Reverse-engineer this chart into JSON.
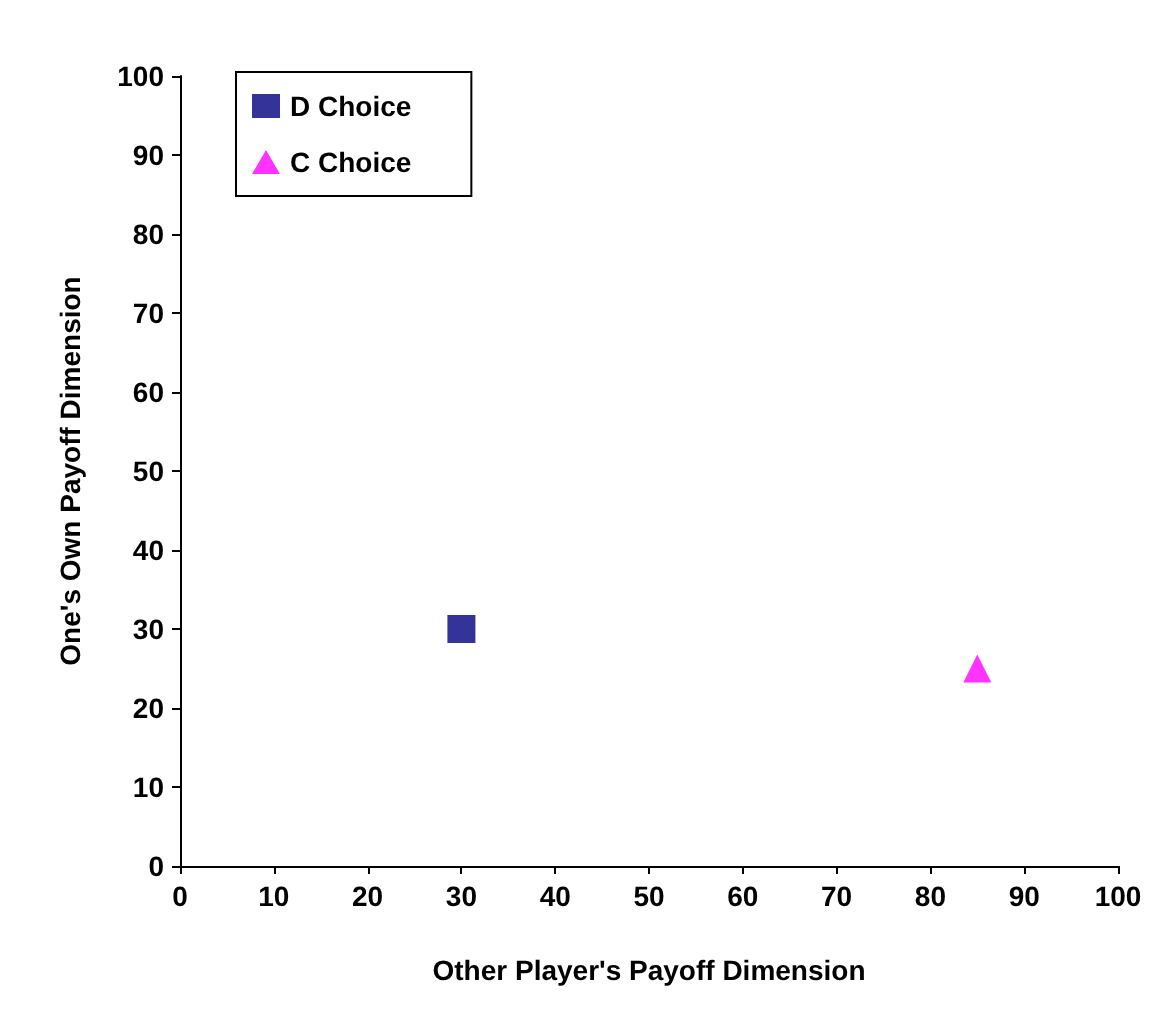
{
  "chart_data": {
    "type": "scatter",
    "xlabel": "Other Player's Payoff Dimension",
    "ylabel": "One's Own Payoff Dimension",
    "xlim": [
      0,
      100
    ],
    "xticks": [
      0,
      10,
      20,
      30,
      40,
      50,
      60,
      70,
      80,
      90,
      100
    ],
    "ylim": [
      0,
      100
    ],
    "yticks": [
      0,
      10,
      20,
      30,
      40,
      50,
      60,
      70,
      80,
      90,
      100
    ],
    "grid": false,
    "legend": "top left",
    "series": [
      {
        "name": "D Choice",
        "color": "#000080",
        "marker": "square",
        "x": [
          30
        ],
        "values": [
          30
        ]
      },
      {
        "name": "C Choice",
        "color": "#ff00ff",
        "marker": "triangle",
        "x": [
          85
        ],
        "values": [
          25
        ]
      }
    ]
  }
}
